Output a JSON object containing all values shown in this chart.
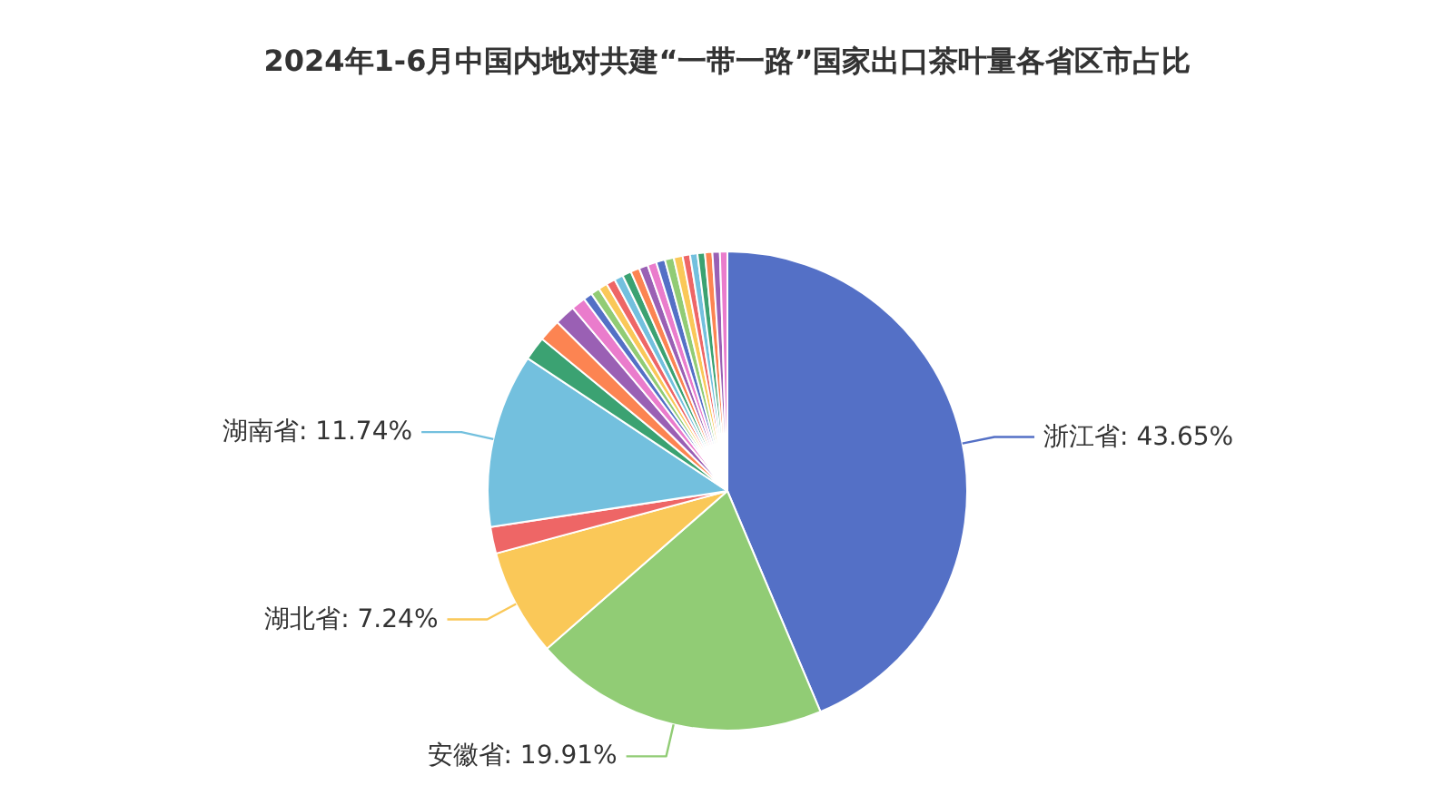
{
  "chart_data": {
    "type": "pie",
    "title": "2024年1-6月中国内地对共建“一带一路”国家出口茶叶量各省区市占比",
    "categories": [
      "浙江省",
      "安徽省",
      "湖北省",
      null,
      "湖南省",
      null,
      null,
      null,
      null,
      null,
      null,
      null,
      null,
      null,
      null,
      null,
      null,
      null,
      null,
      null,
      null,
      null,
      null,
      null,
      null,
      null,
      null
    ],
    "values": [
      43.65,
      19.91,
      7.24,
      1.8,
      11.74,
      1.6,
      1.5,
      1.4,
      0.96,
      0.6,
      0.6,
      0.6,
      0.6,
      0.6,
      0.6,
      0.6,
      0.6,
      0.6,
      0.6,
      0.6,
      0.6,
      0.5,
      0.5,
      0.5,
      0.5,
      0.5,
      0.5
    ],
    "value_labels": [
      "43.65%",
      "19.91%",
      "7.24%",
      null,
      "11.74%",
      null,
      null,
      null,
      null,
      null,
      null,
      null,
      null,
      null,
      null,
      null,
      null,
      null,
      null,
      null,
      null,
      null,
      null,
      null,
      null,
      null,
      null
    ],
    "colors": [
      "#5470c6",
      "#91cc75",
      "#fac858",
      "#ee6666",
      "#73c0de",
      "#3ba272",
      "#fc8452",
      "#9a60b4",
      "#ea7ccc",
      "#5470c6",
      "#91cc75",
      "#fac858",
      "#ee6666",
      "#73c0de",
      "#3ba272",
      "#fc8452",
      "#9a60b4",
      "#ea7ccc",
      "#5470c6",
      "#91cc75",
      "#fac858",
      "#ee6666",
      "#73c0de",
      "#3ba272",
      "#fc8452",
      "#9a60b4",
      "#ea7ccc"
    ]
  }
}
